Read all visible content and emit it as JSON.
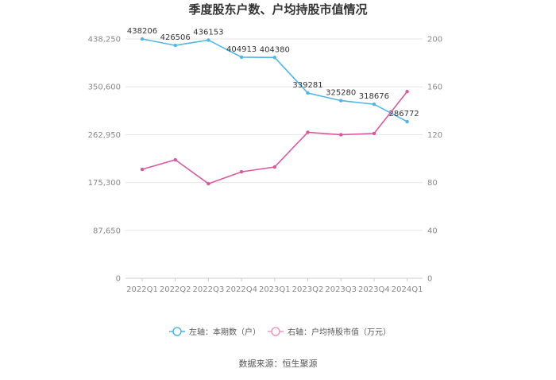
{
  "chart_data": {
    "type": "line",
    "title": "季度股东户数、户均持股市值情况",
    "categories": [
      "2022Q1",
      "2022Q2",
      "2022Q3",
      "2022Q4",
      "2023Q1",
      "2023Q2",
      "2023Q3",
      "2023Q4",
      "2024Q1"
    ],
    "left_axis": {
      "ylim": [
        0,
        438250
      ],
      "ticks": [
        0,
        87650,
        175300,
        262950,
        350600,
        438250
      ],
      "tick_labels": [
        "0",
        "87,650",
        "175,300",
        "262,950",
        "350,600",
        "438,250"
      ]
    },
    "right_axis": {
      "ylim": [
        0,
        200
      ],
      "ticks": [
        0,
        40,
        80,
        120,
        160,
        200
      ],
      "tick_labels": [
        "0",
        "40",
        "80",
        "120",
        "160",
        "200"
      ]
    },
    "series": [
      {
        "name": "左轴：本期数（户）",
        "axis": "left",
        "color": "#4fb7e8",
        "values": [
          438206,
          426506,
          436153,
          404913,
          404380,
          339281,
          325280,
          318676,
          286772
        ],
        "data_labels": [
          "438206",
          "426506",
          "436153",
          "404913",
          "404380",
          "339281",
          "325280",
          "318676",
          "286772"
        ]
      },
      {
        "name": "右轴：户均持股市值（万元）",
        "axis": "right",
        "color": "#d9599f",
        "values": [
          91,
          99,
          79,
          89,
          93,
          122,
          120,
          121,
          156
        ]
      }
    ],
    "grid": true,
    "legend_position": "bottom"
  },
  "source_text": "数据来源：恒生聚源"
}
